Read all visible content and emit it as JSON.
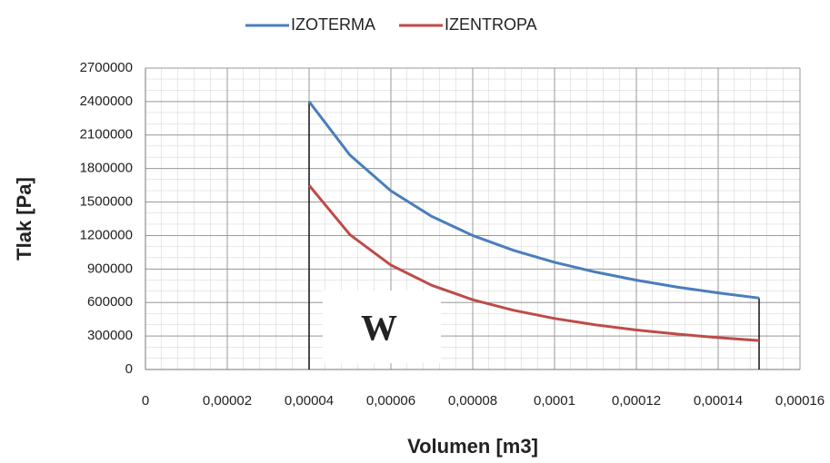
{
  "chart_data": {
    "type": "line",
    "x_label": "Volumen [m3]",
    "y_label": "Tlak [Pa]",
    "annotation": "W",
    "x": [
      4e-05,
      5e-05,
      6e-05,
      7e-05,
      8e-05,
      9e-05,
      0.0001,
      0.00011,
      0.00012,
      0.00013,
      0.00014,
      0.00015
    ],
    "series": [
      {
        "name": "IZOTERMA",
        "color": "#4a7ebb",
        "values": [
          2400000,
          1920000,
          1600000,
          1371000,
          1200000,
          1067000,
          960000,
          873000,
          800000,
          738000,
          686000,
          640000
        ]
      },
      {
        "name": "IZENTROPA",
        "color": "#be4b48",
        "values": [
          1650000,
          1207000,
          935000,
          754000,
          625000,
          530000,
          457000,
          400000,
          354000,
          317000,
          286000,
          259000
        ]
      }
    ],
    "xlim": [
      0,
      0.00016
    ],
    "xticks": [
      0,
      {
        "value": 2e-05,
        "label": "0,00002"
      },
      {
        "value": 4e-05,
        "label": "0,00004"
      },
      {
        "value": 6e-05,
        "label": "0,00006"
      },
      {
        "value": 8e-05,
        "label": "0,00008"
      },
      {
        "value": 0.0001,
        "label": "0,0001"
      },
      {
        "value": 0.00012,
        "label": "0,00012"
      },
      {
        "value": 0.00014,
        "label": "0,00014"
      },
      {
        "value": 0.00016,
        "label": "0,00016"
      }
    ],
    "ylim": [
      0,
      2700000
    ],
    "yticks": [
      0,
      300000,
      600000,
      900000,
      1200000,
      1500000,
      1800000,
      2100000,
      2400000,
      2700000
    ],
    "grid": true,
    "legend": "top"
  }
}
